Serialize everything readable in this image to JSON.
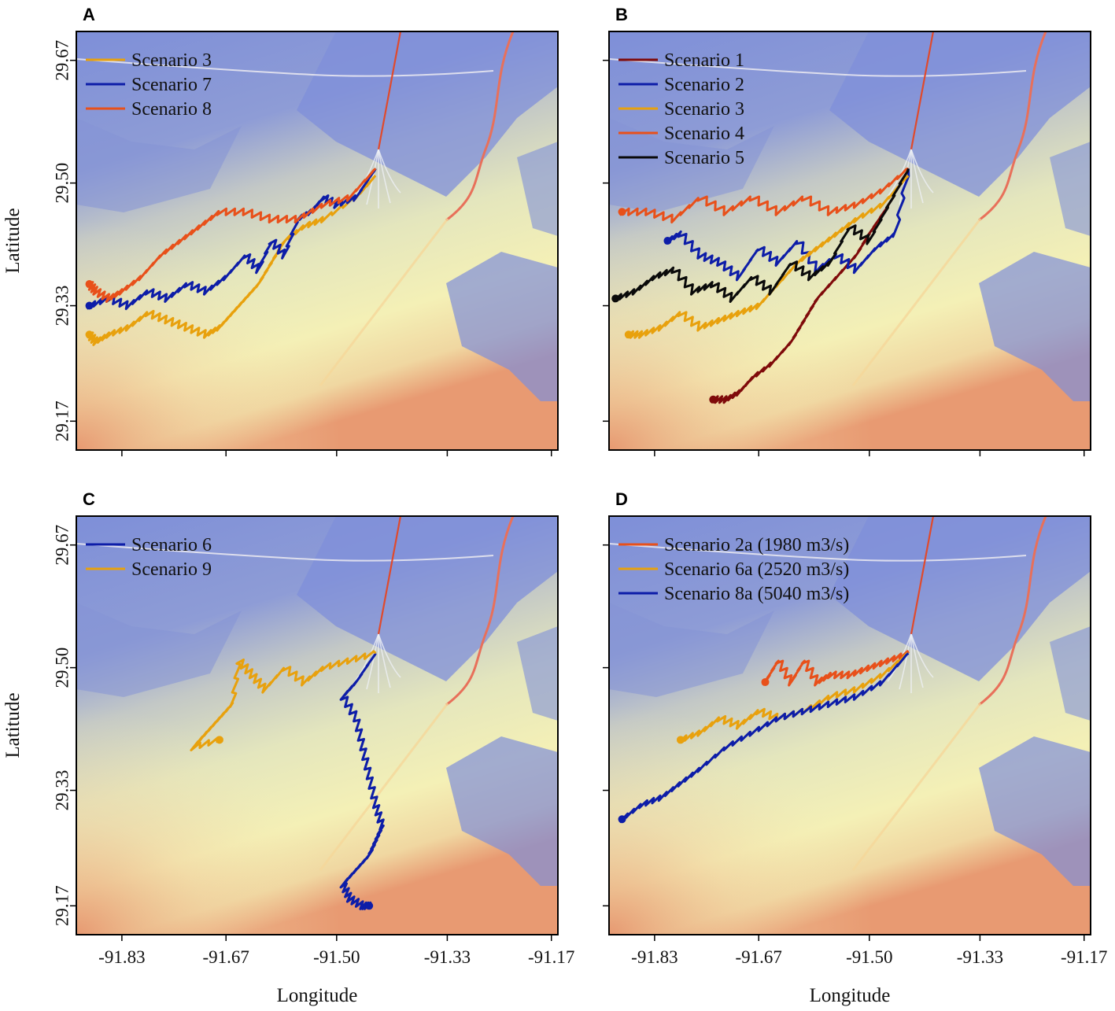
{
  "figure": {
    "xlabel": "Longitude",
    "ylabel": "Latitude",
    "x_ticks": [
      "-91.83",
      "-91.67",
      "-91.50",
      "-91.33",
      "-91.17"
    ],
    "y_ticks": [
      "29.67",
      "29.50",
      "29.33",
      "29.17"
    ]
  },
  "chart_data": [
    {
      "panel": "A",
      "type": "line",
      "xlabel": "",
      "ylabel": "Latitude",
      "xlim": [
        -91.9,
        -91.16
      ],
      "ylim": [
        29.13,
        29.71
      ],
      "series": [
        {
          "name": "Scenario 3",
          "color": "#e8a10d",
          "x": [
            -91.44,
            -91.47,
            -91.52,
            -91.55,
            -91.58,
            -91.6,
            -91.62,
            -91.64,
            -91.66,
            -91.68,
            -91.7,
            -91.73,
            -91.76,
            -91.79,
            -91.82,
            -91.85,
            -91.87,
            -91.88
          ],
          "y": [
            29.51,
            29.48,
            29.45,
            29.44,
            29.42,
            29.39,
            29.36,
            29.34,
            29.32,
            29.3,
            29.29,
            29.3,
            29.31,
            29.32,
            29.3,
            29.29,
            29.28,
            29.29
          ]
        },
        {
          "name": "Scenario 7",
          "color": "#0d1da8",
          "x": [
            -91.44,
            -91.47,
            -91.5,
            -91.52,
            -91.54,
            -91.56,
            -91.58,
            -91.6,
            -91.62,
            -91.64,
            -91.67,
            -91.7,
            -91.73,
            -91.76,
            -91.79,
            -91.82,
            -91.85,
            -91.88
          ],
          "y": [
            29.52,
            29.48,
            29.47,
            29.48,
            29.46,
            29.45,
            29.4,
            29.42,
            29.38,
            29.4,
            29.37,
            29.35,
            29.36,
            29.34,
            29.35,
            29.33,
            29.34,
            29.33
          ]
        },
        {
          "name": "Scenario 8",
          "color": "#e8501a",
          "x": [
            -91.44,
            -91.48,
            -91.52,
            -91.56,
            -91.6,
            -91.64,
            -91.68,
            -91.71,
            -91.74,
            -91.77,
            -91.8,
            -91.83,
            -91.85,
            -91.87,
            -91.88
          ],
          "y": [
            29.52,
            29.48,
            29.47,
            29.45,
            29.45,
            29.46,
            29.46,
            29.44,
            29.42,
            29.4,
            29.37,
            29.35,
            29.34,
            29.35,
            29.36
          ]
        }
      ]
    },
    {
      "panel": "B",
      "type": "line",
      "xlabel": "",
      "ylabel": "",
      "xlim": [
        -91.9,
        -91.16
      ],
      "ylim": [
        29.13,
        29.71
      ],
      "series": [
        {
          "name": "Scenario 1",
          "color": "#7f0a0a",
          "x": [
            -91.44,
            -91.47,
            -91.5,
            -91.52,
            -91.55,
            -91.58,
            -91.6,
            -91.62,
            -91.65,
            -91.68,
            -91.7,
            -91.72,
            -91.74
          ],
          "y": [
            29.52,
            29.47,
            29.43,
            29.4,
            29.37,
            29.34,
            29.31,
            29.28,
            29.25,
            29.23,
            29.21,
            29.2,
            29.2
          ]
        },
        {
          "name": "Scenario 2",
          "color": "#0d1da8",
          "x": [
            -91.44,
            -91.46,
            -91.49,
            -91.52,
            -91.55,
            -91.58,
            -91.61,
            -91.64,
            -91.67,
            -91.7,
            -91.73,
            -91.76,
            -91.79,
            -91.81
          ],
          "y": [
            29.52,
            29.43,
            29.41,
            29.38,
            29.4,
            29.38,
            29.42,
            29.39,
            29.41,
            29.37,
            29.39,
            29.4,
            29.43,
            29.42
          ]
        },
        {
          "name": "Scenario 3",
          "color": "#e8a10d",
          "x": [
            -91.44,
            -91.48,
            -91.52,
            -91.55,
            -91.58,
            -91.61,
            -91.64,
            -91.67,
            -91.7,
            -91.73,
            -91.76,
            -91.79,
            -91.82,
            -91.85,
            -91.87
          ],
          "y": [
            29.51,
            29.47,
            29.45,
            29.43,
            29.41,
            29.39,
            29.36,
            29.33,
            29.32,
            29.31,
            29.3,
            29.32,
            29.3,
            29.29,
            29.29
          ]
        },
        {
          "name": "Scenario 4",
          "color": "#e8501a",
          "x": [
            -91.44,
            -91.48,
            -91.52,
            -91.56,
            -91.6,
            -91.64,
            -91.68,
            -91.72,
            -91.76,
            -91.8,
            -91.84,
            -91.88
          ],
          "y": [
            29.52,
            29.49,
            29.47,
            29.46,
            29.48,
            29.46,
            29.48,
            29.46,
            29.48,
            29.45,
            29.46,
            29.46
          ]
        },
        {
          "name": "Scenario 5",
          "color": "#0a0a0a",
          "x": [
            -91.44,
            -91.47,
            -91.5,
            -91.53,
            -91.56,
            -91.59,
            -91.62,
            -91.65,
            -91.68,
            -91.71,
            -91.74,
            -91.77,
            -91.8,
            -91.83,
            -91.86,
            -91.89
          ],
          "y": [
            29.52,
            29.47,
            29.42,
            29.44,
            29.39,
            29.37,
            29.39,
            29.35,
            29.37,
            29.34,
            29.36,
            29.35,
            29.38,
            29.37,
            29.35,
            29.34
          ]
        }
      ]
    },
    {
      "panel": "C",
      "type": "line",
      "xlabel": "Longitude",
      "ylabel": "Latitude",
      "xlim": [
        -91.9,
        -91.16
      ],
      "ylim": [
        29.13,
        29.71
      ],
      "series": [
        {
          "name": "Scenario 6",
          "color": "#0d1da8",
          "x": [
            -91.44,
            -91.47,
            -91.49,
            -91.47,
            -91.46,
            -91.45,
            -91.44,
            -91.43,
            -91.44,
            -91.45,
            -91.47,
            -91.49,
            -91.48,
            -91.46,
            -91.45
          ],
          "y": [
            29.52,
            29.48,
            29.46,
            29.43,
            29.39,
            29.35,
            29.31,
            29.28,
            29.26,
            29.24,
            29.22,
            29.2,
            29.18,
            29.17,
            29.17
          ]
        },
        {
          "name": "Scenario 9",
          "color": "#e8a10d",
          "x": [
            -91.44,
            -91.48,
            -91.52,
            -91.55,
            -91.58,
            -91.61,
            -91.63,
            -91.65,
            -91.66,
            -91.68,
            -91.7,
            -91.72,
            -91.68
          ],
          "y": [
            29.52,
            29.51,
            29.5,
            29.48,
            29.5,
            29.47,
            29.49,
            29.51,
            29.45,
            29.43,
            29.41,
            29.39,
            29.4
          ]
        }
      ]
    },
    {
      "panel": "D",
      "type": "line",
      "xlabel": "Longitude",
      "ylabel": "",
      "xlim": [
        -91.9,
        -91.16
      ],
      "ylim": [
        29.13,
        29.71
      ],
      "series": [
        {
          "name": "Scenario 2a (1980 m3/s)",
          "color": "#e8501a",
          "x": [
            -91.44,
            -91.47,
            -91.5,
            -91.53,
            -91.56,
            -91.58,
            -91.6,
            -91.62,
            -91.64,
            -91.66
          ],
          "y": [
            29.52,
            29.51,
            29.5,
            29.49,
            29.49,
            29.48,
            29.51,
            29.48,
            29.51,
            29.48
          ]
        },
        {
          "name": "Scenario 6a (2520 m3/s)",
          "color": "#e8a10d",
          "x": [
            -91.44,
            -91.48,
            -91.52,
            -91.56,
            -91.6,
            -91.64,
            -91.67,
            -91.7,
            -91.73,
            -91.76,
            -91.79
          ],
          "y": [
            29.52,
            29.49,
            29.47,
            29.46,
            29.44,
            29.43,
            29.44,
            29.42,
            29.43,
            29.41,
            29.4
          ]
        },
        {
          "name": "Scenario 8a (5040 m3/s)",
          "color": "#0d1da8",
          "x": [
            -91.44,
            -91.48,
            -91.52,
            -91.56,
            -91.6,
            -91.64,
            -91.68,
            -91.72,
            -91.76,
            -91.79,
            -91.82,
            -91.85,
            -91.88
          ],
          "y": [
            29.52,
            29.48,
            29.46,
            29.45,
            29.44,
            29.43,
            29.41,
            29.39,
            29.36,
            29.34,
            29.32,
            29.31,
            29.29
          ]
        }
      ]
    }
  ]
}
